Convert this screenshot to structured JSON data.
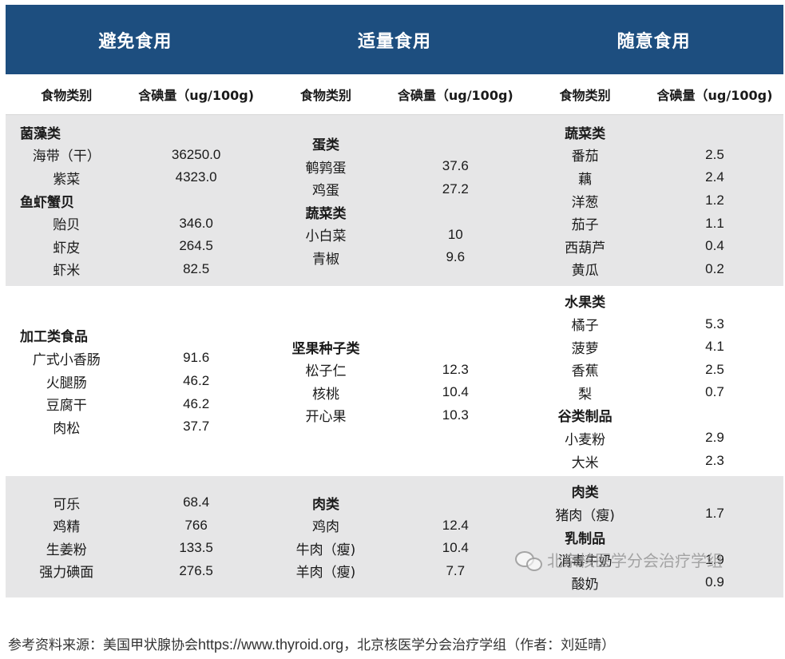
{
  "headers": [
    "避免食用",
    "适量食用",
    "随意食用"
  ],
  "subheaders": {
    "name": "食物类别",
    "value": "含碘量（ug/100g)"
  },
  "bands": [
    {
      "shade": "gray",
      "columns": [
        [
          {
            "type": "cat",
            "text": "菌藻类"
          },
          {
            "type": "item",
            "name": "海带（干）",
            "value": "36250.0"
          },
          {
            "type": "item",
            "name": "紫菜",
            "value": "4323.0"
          },
          {
            "type": "cat",
            "text": "鱼虾蟹贝"
          },
          {
            "type": "item",
            "name": "贻贝",
            "value": "346.0"
          },
          {
            "type": "item",
            "name": "虾皮",
            "value": "264.5"
          },
          {
            "type": "item",
            "name": "虾米",
            "value": "82.5"
          }
        ],
        [
          {
            "type": "cat",
            "text": "蛋类"
          },
          {
            "type": "item",
            "name": "鹌鹑蛋",
            "value": "37.6"
          },
          {
            "type": "item",
            "name": "鸡蛋",
            "value": "27.2"
          },
          {
            "type": "cat",
            "text": "蔬菜类"
          },
          {
            "type": "item",
            "name": "小白菜",
            "value": "10"
          },
          {
            "type": "item",
            "name": "青椒",
            "value": "9.6"
          }
        ],
        [
          {
            "type": "cat",
            "text": "蔬菜类"
          },
          {
            "type": "item",
            "name": "番茄",
            "value": "2.5"
          },
          {
            "type": "item",
            "name": "藕",
            "value": "2.4"
          },
          {
            "type": "item",
            "name": "洋葱",
            "value": "1.2"
          },
          {
            "type": "item",
            "name": "茄子",
            "value": "1.1"
          },
          {
            "type": "item",
            "name": "西葫芦",
            "value": "0.4"
          },
          {
            "type": "item",
            "name": "黄瓜",
            "value": "0.2"
          }
        ]
      ]
    },
    {
      "shade": "white",
      "columns": [
        [
          {
            "type": "cat",
            "text": "加工类食品"
          },
          {
            "type": "item",
            "name": "广式小香肠",
            "value": "91.6"
          },
          {
            "type": "item",
            "name": "火腿肠",
            "value": "46.2"
          },
          {
            "type": "item",
            "name": "豆腐干",
            "value": "46.2"
          },
          {
            "type": "item",
            "name": "肉松",
            "value": "37.7"
          }
        ],
        [
          {
            "type": "cat",
            "text": "坚果种子类"
          },
          {
            "type": "item",
            "name": "松子仁",
            "value": "12.3"
          },
          {
            "type": "item",
            "name": "核桃",
            "value": "10.4"
          },
          {
            "type": "item",
            "name": "开心果",
            "value": "10.3"
          }
        ],
        [
          {
            "type": "cat",
            "text": "水果类"
          },
          {
            "type": "item",
            "name": "橘子",
            "value": "5.3"
          },
          {
            "type": "item",
            "name": "菠萝",
            "value": "4.1"
          },
          {
            "type": "item",
            "name": "香蕉",
            "value": "2.5"
          },
          {
            "type": "item",
            "name": "梨",
            "value": "0.7"
          },
          {
            "type": "cat",
            "text": "谷类制品"
          },
          {
            "type": "item",
            "name": "小麦粉",
            "value": "2.9"
          },
          {
            "type": "item",
            "name": "大米",
            "value": "2.3"
          }
        ]
      ]
    },
    {
      "shade": "gray",
      "columns": [
        [
          {
            "type": "item",
            "name": "可乐",
            "value": "68.4"
          },
          {
            "type": "item",
            "name": "鸡精",
            "value": "766"
          },
          {
            "type": "item",
            "name": "生姜粉",
            "value": "133.5"
          },
          {
            "type": "item",
            "name": "强力碘面",
            "value": "276.5"
          }
        ],
        [
          {
            "type": "cat",
            "text": "肉类"
          },
          {
            "type": "item",
            "name": "鸡肉",
            "value": "12.4"
          },
          {
            "type": "item",
            "name": "牛肉（瘦)",
            "value": "10.4"
          },
          {
            "type": "item",
            "name": "羊肉（瘦)",
            "value": "7.7"
          }
        ],
        [
          {
            "type": "cat",
            "text": "肉类"
          },
          {
            "type": "item",
            "name": "猪肉（瘦)",
            "value": "1.7"
          },
          {
            "type": "cat",
            "text": "乳制品"
          },
          {
            "type": "item",
            "name": "消毒牛奶",
            "value": "1.9"
          },
          {
            "type": "item",
            "name": "酸奶",
            "value": "0.9"
          }
        ]
      ]
    }
  ],
  "watermark": "北京核医学分会治疗学组",
  "footer": {
    "prefix": "参考资料来源：美国甲状腺协会",
    "url": "https://www.thyroid.org",
    "suffix": "，北京核医学分会治疗学组（作者：刘延晴）"
  },
  "colors": {
    "header_bg": "#1d4e7f",
    "band_gray": "#e6e6e7"
  }
}
